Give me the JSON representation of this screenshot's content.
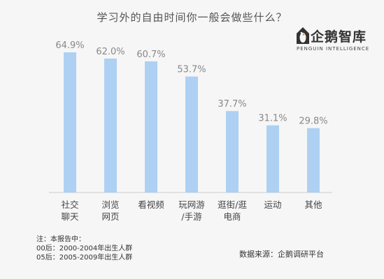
{
  "title": "学习外的自由时间你一般会做些什么？",
  "logo": {
    "name": "企鹅智库",
    "tagline": "PENGUIN INTELLIGENCE"
  },
  "chart_data": {
    "type": "bar",
    "title": "学习外的自由时间你一般会做些什么？",
    "categories": [
      [
        "社交",
        "聊天"
      ],
      [
        "浏览",
        "网页"
      ],
      [
        "看视频"
      ],
      [
        "玩网游",
        "/手游"
      ],
      [
        "逛街/逛",
        "电商"
      ],
      [
        "运动"
      ],
      [
        "其他"
      ]
    ],
    "values": [
      64.9,
      62.0,
      60.7,
      53.7,
      37.7,
      31.1,
      29.8
    ],
    "value_labels": [
      "64.9%",
      "62.0%",
      "60.7%",
      "53.7%",
      "37.7%",
      "31.1%",
      "29.8%"
    ],
    "ylim": [
      0,
      64.9
    ],
    "bar_color": "#aed0f3",
    "grid": false,
    "baseline_color": "#cccccc"
  },
  "notes": [
    "注：本报告中：",
    "00后：2000-2004年出生人群",
    "05后：2005-2009年出生人群"
  ],
  "source": "数据来源：企鹅调研平台"
}
